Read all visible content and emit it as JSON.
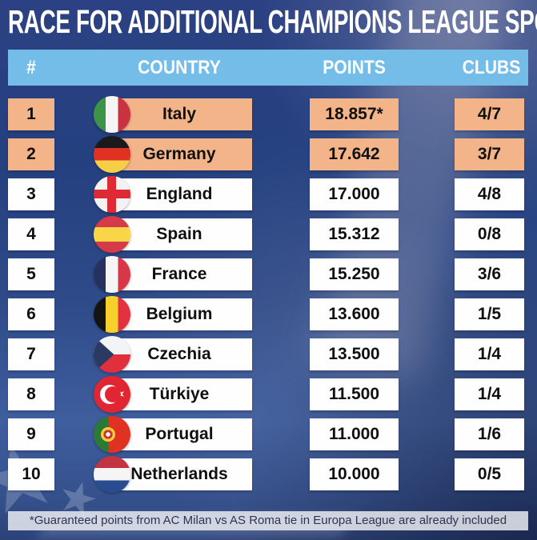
{
  "title": "RACE FOR ADDITIONAL CHAMPIONS LEAGUE SPOTS",
  "table": {
    "headers": {
      "rank": "#",
      "country": "COUNTRY",
      "points": "POINTS",
      "clubs": "CLUBS"
    },
    "rows": [
      {
        "rank": "1",
        "country": "Italy",
        "points": "18.857*",
        "clubs": "4/7",
        "flag": "italy",
        "highlighted": true
      },
      {
        "rank": "2",
        "country": "Germany",
        "points": "17.642",
        "clubs": "3/7",
        "flag": "germany",
        "highlighted": true
      },
      {
        "rank": "3",
        "country": "England",
        "points": "17.000",
        "clubs": "4/8",
        "flag": "england",
        "highlighted": false
      },
      {
        "rank": "4",
        "country": "Spain",
        "points": "15.312",
        "clubs": "0/8",
        "flag": "spain",
        "highlighted": false
      },
      {
        "rank": "5",
        "country": "France",
        "points": "15.250",
        "clubs": "3/6",
        "flag": "france",
        "highlighted": false
      },
      {
        "rank": "6",
        "country": "Belgium",
        "points": "13.600",
        "clubs": "1/5",
        "flag": "belgium",
        "highlighted": false
      },
      {
        "rank": "7",
        "country": "Czechia",
        "points": "13.500",
        "clubs": "1/4",
        "flag": "czechia",
        "highlighted": false
      },
      {
        "rank": "8",
        "country": "Türkiye",
        "points": "11.500",
        "clubs": "1/4",
        "flag": "turkiye",
        "highlighted": false
      },
      {
        "rank": "9",
        "country": "Portugal",
        "points": "11.000",
        "clubs": "1/6",
        "flag": "portugal",
        "highlighted": false
      },
      {
        "rank": "10",
        "country": "Netherlands",
        "points": "10.000",
        "clubs": "0/5",
        "flag": "netherlands",
        "highlighted": false
      }
    ]
  },
  "footnote": "*Guaranteed points from AC Milan vs AS Roma tie in Europa League are already included",
  "colors": {
    "background": "#24407f",
    "header_bg": "#74bde9",
    "highlight_row_bg": "#f4b489",
    "row_bg": "#fefefe",
    "title_text": "#ffffff",
    "cell_text": "#101010",
    "footnote_text": "#2b3550"
  },
  "decor": {
    "star_glyph": "★"
  },
  "chart_data": {
    "type": "table",
    "title": "RACE FOR ADDITIONAL CHAMPIONS LEAGUE SPOTS",
    "columns": [
      "#",
      "COUNTRY",
      "POINTS",
      "CLUBS"
    ],
    "rows": [
      [
        "1",
        "Italy",
        "18.857*",
        "4/7"
      ],
      [
        "2",
        "Germany",
        "17.642",
        "3/7"
      ],
      [
        "3",
        "England",
        "17.000",
        "4/8"
      ],
      [
        "4",
        "Spain",
        "15.312",
        "0/8"
      ],
      [
        "5",
        "France",
        "15.250",
        "3/6"
      ],
      [
        "6",
        "Belgium",
        "13.600",
        "1/5"
      ],
      [
        "7",
        "Czechia",
        "13.500",
        "1/4"
      ],
      [
        "8",
        "Türkiye",
        "11.500",
        "1/4"
      ],
      [
        "9",
        "Portugal",
        "11.000",
        "1/6"
      ],
      [
        "10",
        "Netherlands",
        "10.000",
        "0/5"
      ]
    ],
    "highlighted_rows": [
      1,
      2
    ],
    "footnote": "*Guaranteed points from AC Milan vs AS Roma tie in Europa League are already included"
  }
}
